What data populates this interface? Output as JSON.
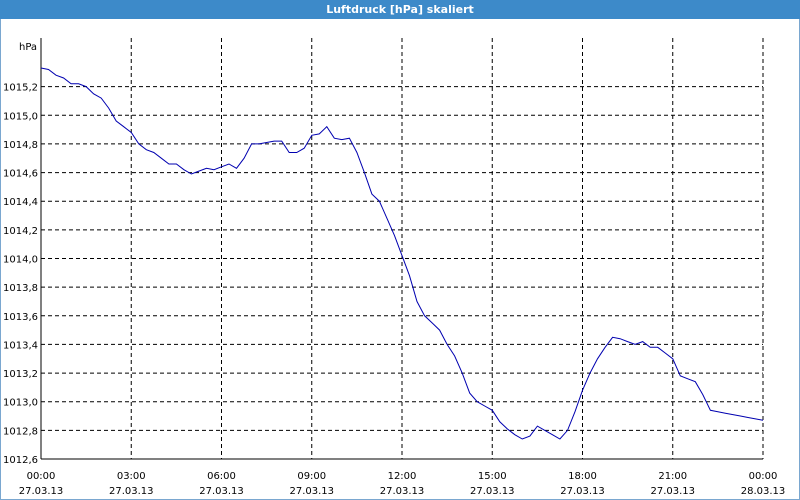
{
  "window": {
    "title": "Luftdruck [hPa] skaliert"
  },
  "chart_data": {
    "type": "line",
    "title": "Luftdruck [hPa] skaliert",
    "ylabel": "hPa",
    "xlabel": "",
    "grid": true,
    "xlim": [
      0,
      24
    ],
    "ylim": [
      1012.6,
      1015.4
    ],
    "x_ticks": [
      {
        "value": 0,
        "time": "00:00",
        "date": "27.03.13"
      },
      {
        "value": 3,
        "time": "03:00",
        "date": "27.03.13"
      },
      {
        "value": 6,
        "time": "06:00",
        "date": "27.03.13"
      },
      {
        "value": 9,
        "time": "09:00",
        "date": "27.03.13"
      },
      {
        "value": 12,
        "time": "12:00",
        "date": "27.03.13"
      },
      {
        "value": 15,
        "time": "15:00",
        "date": "27.03.13"
      },
      {
        "value": 18,
        "time": "18:00",
        "date": "27.03.13"
      },
      {
        "value": 21,
        "time": "21:00",
        "date": "27.03.13"
      },
      {
        "value": 24,
        "time": "00:00",
        "date": "28.03.13"
      }
    ],
    "y_ticks": [
      {
        "value": 1012.6,
        "label": "1012,6"
      },
      {
        "value": 1012.8,
        "label": "1012,8"
      },
      {
        "value": 1013.0,
        "label": "1013,0"
      },
      {
        "value": 1013.2,
        "label": "1013,2"
      },
      {
        "value": 1013.4,
        "label": "1013,4"
      },
      {
        "value": 1013.6,
        "label": "1013,6"
      },
      {
        "value": 1013.8,
        "label": "1013,8"
      },
      {
        "value": 1014.0,
        "label": "1014,0"
      },
      {
        "value": 1014.2,
        "label": "1014,2"
      },
      {
        "value": 1014.4,
        "label": "1014,4"
      },
      {
        "value": 1014.6,
        "label": "1014,6"
      },
      {
        "value": 1014.8,
        "label": "1014,8"
      },
      {
        "value": 1015.0,
        "label": "1015,0"
      },
      {
        "value": 1015.2,
        "label": "1015,2"
      }
    ],
    "line_color": "#0000b0",
    "series": [
      {
        "x": [
          0,
          0.25,
          0.5,
          0.75,
          1,
          1.25,
          1.5,
          1.75,
          2,
          2.25,
          2.5,
          2.75,
          3,
          3.25,
          3.5,
          3.75,
          4,
          4.25,
          4.5,
          4.75,
          5,
          5.25,
          5.5,
          5.75,
          6,
          6.25,
          6.5,
          6.75,
          7,
          7.25,
          7.5,
          7.75,
          8,
          8.25,
          8.5,
          8.75,
          9,
          9.25,
          9.5,
          9.75,
          10,
          10.25,
          10.5,
          10.75,
          11,
          11.25,
          11.5,
          11.75,
          12,
          12.25,
          12.5,
          12.75,
          13,
          13.25,
          13.5,
          13.75,
          14,
          14.25,
          14.5,
          14.75,
          15,
          15.25,
          15.5,
          15.75,
          16,
          16.25,
          16.5,
          16.75,
          17,
          17.25,
          17.5,
          17.75,
          18,
          18.25,
          18.5,
          18.75,
          19,
          19.25,
          19.5,
          19.75,
          20,
          20.25,
          20.5,
          20.75,
          21,
          21.25,
          21.5,
          21.75,
          22,
          22.25,
          22.5,
          22.75,
          23,
          23.25,
          23.5,
          23.75,
          24
        ],
        "values": [
          1015.33,
          1015.32,
          1015.28,
          1015.26,
          1015.22,
          1015.22,
          1015.2,
          1015.15,
          1015.12,
          1015.05,
          1014.96,
          1014.92,
          1014.88,
          1014.8,
          1014.76,
          1014.74,
          1014.7,
          1014.66,
          1014.66,
          1014.62,
          1014.59,
          1014.61,
          1014.63,
          1014.62,
          1014.64,
          1014.66,
          1014.63,
          1014.7,
          1014.8,
          1014.8,
          1014.81,
          1014.82,
          1014.82,
          1014.74,
          1014.74,
          1014.77,
          1014.86,
          1014.87,
          1014.92,
          1014.84,
          1014.83,
          1014.84,
          1014.74,
          1014.6,
          1014.45,
          1014.4,
          1014.28,
          1014.16,
          1014.02,
          1013.88,
          1013.7,
          1013.6,
          1013.55,
          1013.5,
          1013.4,
          1013.32,
          1013.2,
          1013.06,
          1013.0,
          1012.97,
          1012.94,
          1012.86,
          1012.81,
          1012.77,
          1012.74,
          1012.76,
          1012.83,
          1012.8,
          1012.77,
          1012.74,
          1012.8,
          1012.93,
          1013.08,
          1013.2,
          1013.3,
          1013.38,
          1013.45,
          1013.44,
          1013.42,
          1013.4,
          1013.42,
          1013.38,
          1013.38,
          1013.34,
          1013.3,
          1013.18,
          1013.16,
          1013.14,
          1013.05,
          1012.94,
          1012.93,
          1012.92,
          1012.91,
          1012.9,
          1012.89,
          1012.88,
          1012.87
        ]
      }
    ]
  }
}
